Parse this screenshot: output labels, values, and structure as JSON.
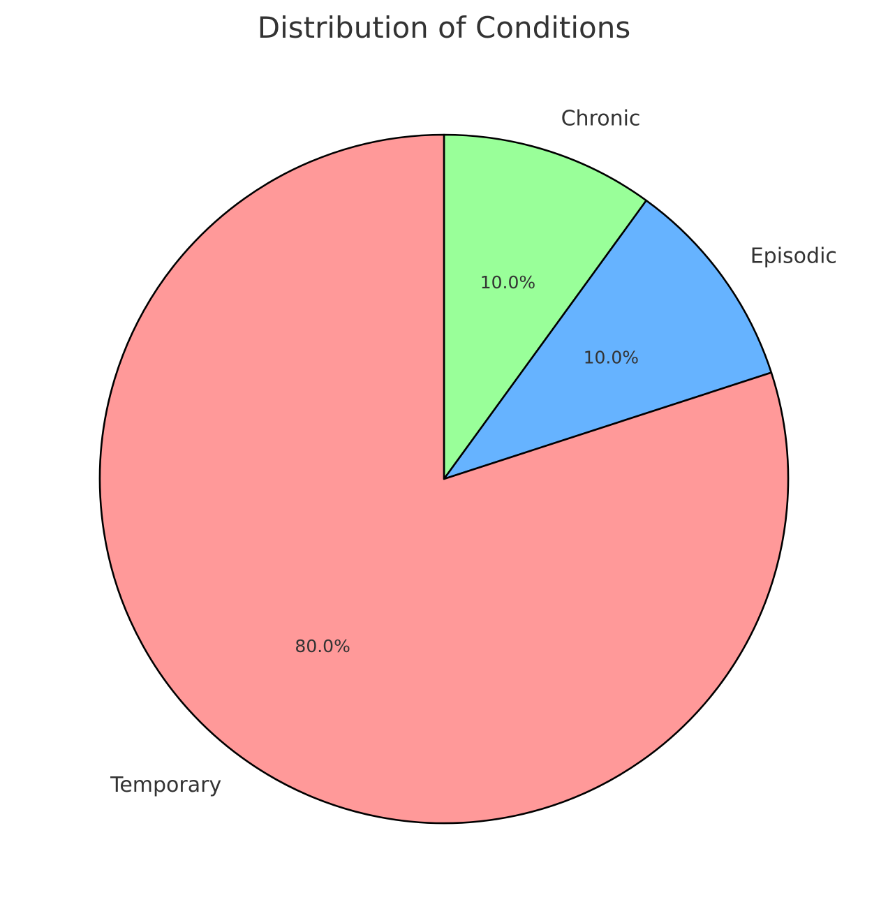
{
  "chart_data": {
    "type": "pie",
    "title": "Distribution of Conditions",
    "categories": [
      "Chronic",
      "Episodic",
      "Temporary"
    ],
    "values": [
      10.0,
      10.0,
      80.0
    ],
    "percent_labels": [
      "10.0%",
      "10.0%",
      "80.0%"
    ],
    "colors": [
      "#99ff99",
      "#66b3ff",
      "#ff9999"
    ],
    "start_angle_deg": 90,
    "direction": "clockwise",
    "edge_color": "#000000"
  }
}
